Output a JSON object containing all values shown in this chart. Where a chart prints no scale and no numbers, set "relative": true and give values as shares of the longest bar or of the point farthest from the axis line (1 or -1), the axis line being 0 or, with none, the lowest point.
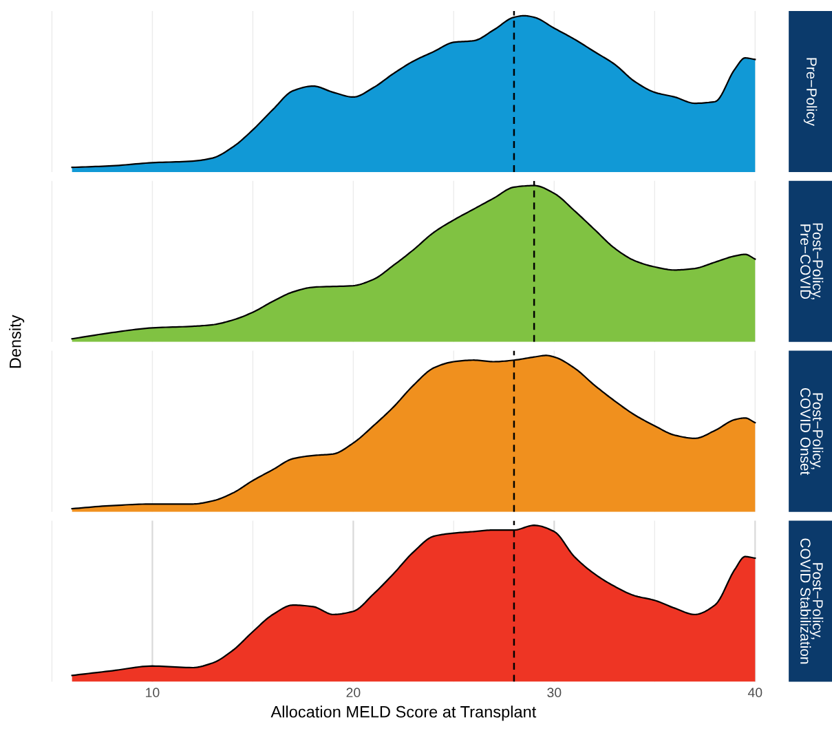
{
  "chart_data": [
    {
      "type": "area",
      "annotations": [
        "Pre−Policy"
      ],
      "relative": true,
      "grid": "x",
      "tick_labels": false,
      "xlim": [
        4.9,
        40.1
      ],
      "xticks": [
        {
          "value": 5,
          "label": null
        },
        {
          "value": 10,
          "label": null
        },
        {
          "value": 15,
          "label": null
        },
        {
          "value": 20,
          "label": null
        },
        {
          "value": 25,
          "label": null
        },
        {
          "value": 30,
          "label": null
        },
        {
          "value": 35,
          "label": null
        },
        {
          "value": 40,
          "label": null
        }
      ],
      "x": [
        6,
        8,
        10,
        12,
        13,
        14,
        15,
        16,
        17,
        18,
        19,
        20,
        21,
        22,
        23,
        24,
        25,
        26,
        27,
        28,
        28.5,
        29,
        30,
        31,
        32,
        33,
        34,
        35,
        36,
        37,
        38,
        39,
        39.5,
        40
      ],
      "series": [
        {
          "color": "#1199d6",
          "values": [
            0.03,
            0.04,
            0.06,
            0.07,
            0.09,
            0.16,
            0.27,
            0.4,
            0.52,
            0.55,
            0.51,
            0.48,
            0.54,
            0.63,
            0.71,
            0.77,
            0.83,
            0.84,
            0.91,
            0.99,
            1.0,
            0.99,
            0.92,
            0.85,
            0.77,
            0.69,
            0.58,
            0.51,
            0.48,
            0.44,
            0.45,
            0.66,
            0.73,
            0.72
          ]
        }
      ],
      "ref_lines": [
        {
          "axis": "x",
          "value": 28,
          "line_style": "dashed",
          "color": "#000000"
        }
      ]
    },
    {
      "type": "area",
      "annotations": [
        "Post−Policy,\nPre−COVID"
      ],
      "ylabel": "Density",
      "relative": true,
      "grid": "x",
      "tick_labels": false,
      "xlim": [
        4.9,
        40.1
      ],
      "xticks": [
        {
          "value": 5,
          "label": null
        },
        {
          "value": 10,
          "label": null
        },
        {
          "value": 15,
          "label": null
        },
        {
          "value": 20,
          "label": null
        },
        {
          "value": 25,
          "label": null
        },
        {
          "value": 30,
          "label": null
        },
        {
          "value": 35,
          "label": null
        },
        {
          "value": 40,
          "label": null
        }
      ],
      "x": [
        6,
        8,
        10,
        12,
        13,
        14,
        15,
        16,
        17,
        18,
        20,
        21,
        22,
        23,
        24,
        25,
        26,
        27,
        28,
        29,
        30,
        31,
        32,
        33,
        34,
        35,
        36,
        37,
        38,
        39,
        39.5,
        40
      ],
      "series": [
        {
          "color": "#80c242",
          "values": [
            0.02,
            0.06,
            0.09,
            0.1,
            0.11,
            0.14,
            0.19,
            0.26,
            0.32,
            0.35,
            0.36,
            0.4,
            0.49,
            0.59,
            0.7,
            0.78,
            0.85,
            0.92,
            0.99,
            1.0,
            0.95,
            0.84,
            0.72,
            0.6,
            0.52,
            0.48,
            0.46,
            0.47,
            0.51,
            0.55,
            0.56,
            0.53
          ]
        }
      ],
      "ref_lines": [
        {
          "axis": "x",
          "value": 29,
          "line_style": "dashed",
          "color": "#000000"
        }
      ]
    },
    {
      "type": "area",
      "annotations": [
        "Post−Policy,\nCOVID Onset"
      ],
      "relative": true,
      "grid": "x",
      "tick_labels": false,
      "xlim": [
        4.9,
        40.1
      ],
      "xticks": [
        {
          "value": 5,
          "label": null
        },
        {
          "value": 10,
          "label": null
        },
        {
          "value": 15,
          "label": null
        },
        {
          "value": 20,
          "label": null
        },
        {
          "value": 25,
          "label": null
        },
        {
          "value": 30,
          "label": null
        },
        {
          "value": 35,
          "label": null
        },
        {
          "value": 40,
          "label": null
        }
      ],
      "x": [
        6,
        8,
        10,
        12,
        13,
        14,
        15,
        16,
        17,
        18,
        19,
        20,
        21,
        22,
        23,
        24,
        25,
        26,
        27,
        28,
        29,
        29.6,
        30,
        31,
        32,
        33,
        34,
        35,
        36,
        37,
        38,
        39,
        39.5,
        40
      ],
      "series": [
        {
          "color": "#f0901e",
          "values": [
            0.02,
            0.04,
            0.05,
            0.05,
            0.07,
            0.12,
            0.2,
            0.27,
            0.34,
            0.36,
            0.37,
            0.44,
            0.55,
            0.67,
            0.81,
            0.92,
            0.96,
            0.97,
            0.96,
            0.97,
            0.99,
            1.0,
            0.99,
            0.92,
            0.81,
            0.71,
            0.62,
            0.55,
            0.49,
            0.47,
            0.52,
            0.59,
            0.6,
            0.57
          ]
        }
      ],
      "ref_lines": [
        {
          "axis": "x",
          "value": 28,
          "line_style": "dashed",
          "color": "#000000"
        }
      ]
    },
    {
      "type": "area",
      "annotations": [
        "Post−Policy,\nCOVID Stabilization"
      ],
      "xlabel": "Allocation MELD Score at Transplant",
      "relative": true,
      "grid": "x",
      "tick_labels": "x",
      "xlim": [
        4.9,
        40.1
      ],
      "xticks": [
        {
          "value": 5,
          "label": null
        },
        10,
        {
          "value": 15,
          "label": null
        },
        20,
        {
          "value": 25,
          "label": null
        },
        30,
        {
          "value": 35,
          "label": null
        },
        40
      ],
      "x": [
        6,
        8,
        10,
        12,
        13,
        14,
        15,
        16,
        17,
        18,
        19,
        20,
        21,
        22,
        23,
        24,
        25,
        26,
        27,
        28,
        29,
        30,
        31,
        32,
        33,
        34,
        35,
        36,
        37,
        38,
        39,
        39.5,
        40
      ],
      "series": [
        {
          "color": "#ee3524",
          "values": [
            0.04,
            0.07,
            0.1,
            0.09,
            0.12,
            0.2,
            0.32,
            0.43,
            0.49,
            0.48,
            0.43,
            0.45,
            0.56,
            0.69,
            0.83,
            0.93,
            0.95,
            0.96,
            0.97,
            0.97,
            1.0,
            0.96,
            0.8,
            0.69,
            0.61,
            0.55,
            0.52,
            0.47,
            0.43,
            0.49,
            0.72,
            0.8,
            0.79
          ]
        }
      ],
      "ref_lines": [
        {
          "axis": "x",
          "value": 28,
          "line_style": "dashed",
          "color": "#000000"
        }
      ]
    }
  ]
}
